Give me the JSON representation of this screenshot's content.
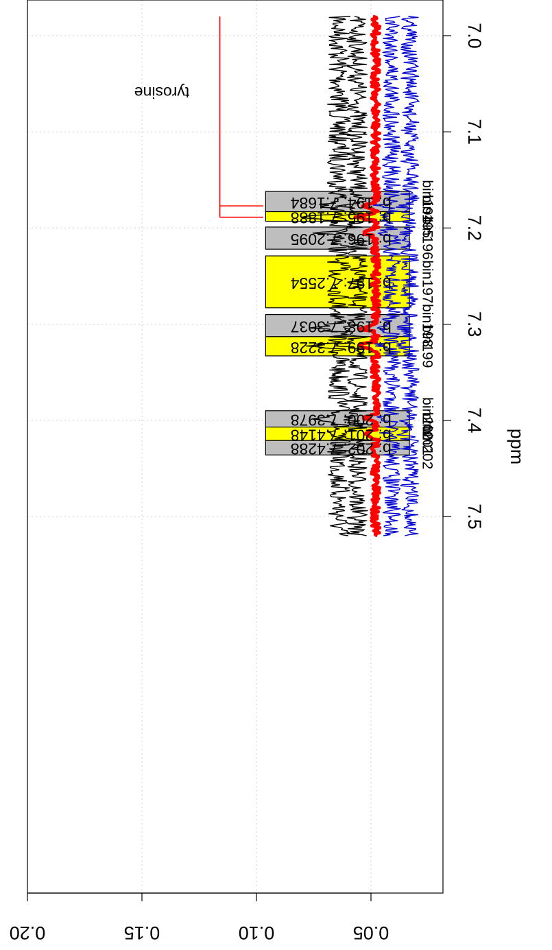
{
  "chart_data": {
    "type": "line",
    "rotation_deg": 90,
    "xlabel": "ppm",
    "ylabel": "",
    "x_axis": {
      "reversed": true,
      "lim": [
        6.98,
        7.52
      ],
      "ticks": [
        "7.0",
        "7.1",
        "7.2",
        "7.3",
        "7.4",
        "7.5"
      ]
    },
    "y_axis": {
      "lim": [
        0.02,
        0.2
      ],
      "ticks": [
        "0.05",
        "0.10",
        "0.15",
        "0.20"
      ]
    },
    "grid": true,
    "colors": {
      "black": "#000000",
      "red": "#ff0000",
      "blue": "#0000cc",
      "bin_gray": "#bebebe",
      "bin_yellow": "#ffff00",
      "grid": "#cccccc"
    },
    "series": [
      {
        "color_key": "black",
        "style": "thin",
        "baseline": 0.064,
        "noise": 0.005
      },
      {
        "color_key": "black",
        "style": "thin",
        "baseline": 0.056,
        "noise": 0.0045
      },
      {
        "color_key": "red",
        "style": "thick",
        "baseline": 0.048,
        "noise": 0.0018
      },
      {
        "color_key": "blue",
        "style": "thin",
        "baseline": 0.041,
        "noise": 0.004
      },
      {
        "color_key": "blue",
        "style": "thin",
        "baseline": 0.033,
        "noise": 0.004
      }
    ],
    "peaks": [
      {
        "ppm": 7.177,
        "height": 0.01,
        "width": 0.0025
      },
      {
        "ppm": 7.1886,
        "height": 0.012,
        "width": 0.0025
      },
      {
        "ppm": 7.205,
        "height": 0.007,
        "width": 0.003
      },
      {
        "ppm": 7.304,
        "height": 0.009,
        "width": 0.003
      },
      {
        "ppm": 7.322,
        "height": 0.012,
        "width": 0.0025
      },
      {
        "ppm": 7.398,
        "height": 0.007,
        "width": 0.003
      },
      {
        "ppm": 7.414,
        "height": 0.008,
        "width": 0.003
      }
    ],
    "bins": [
      {
        "name": "bin194",
        "label": "b: 194: 7.1684",
        "ppm_min": 7.162,
        "ppm_max": 7.183,
        "y_top": 0.096,
        "fill": "bin_gray"
      },
      {
        "name": "bin195",
        "label": "b: 195: 7.1888",
        "ppm_min": 7.183,
        "ppm_max": 7.193,
        "y_top": 0.096,
        "fill": "bin_yellow"
      },
      {
        "name": "bin196",
        "label": "b: 196: 7.2095",
        "ppm_min": 7.199,
        "ppm_max": 7.222,
        "y_top": 0.096,
        "fill": "bin_gray"
      },
      {
        "name": "bin197",
        "label": "b: 197: 7.2554",
        "ppm_min": 7.229,
        "ppm_max": 7.283,
        "y_top": 0.096,
        "fill": "bin_yellow"
      },
      {
        "name": "bin198",
        "label": "b: 198: 7.3037",
        "ppm_min": 7.29,
        "ppm_max": 7.313,
        "y_top": 0.096,
        "fill": "bin_gray"
      },
      {
        "name": "bin199",
        "label": "b: 199: 7.3228",
        "ppm_min": 7.313,
        "ppm_max": 7.333,
        "y_top": 0.096,
        "fill": "bin_yellow"
      },
      {
        "name": "bin200",
        "label": "b: 200: 7.3978",
        "ppm_min": 7.39,
        "ppm_max": 7.407,
        "y_top": 0.096,
        "fill": "bin_gray"
      },
      {
        "name": "bin201",
        "label": "b: 201: 7.4148",
        "ppm_min": 7.407,
        "ppm_max": 7.421,
        "y_top": 0.096,
        "fill": "bin_yellow"
      },
      {
        "name": "bin202",
        "label": "b: 202: 7.4288",
        "ppm_min": 7.421,
        "ppm_max": 7.436,
        "y_top": 0.096,
        "fill": "bin_gray"
      }
    ],
    "bin_name_labels": [
      "bin194",
      "bin195",
      "bin196",
      "bin197",
      "bin198",
      "bin199",
      "bin200",
      "bin201",
      "bin202"
    ],
    "annotation": {
      "text": "tyrosine",
      "color_key": "red",
      "bracket_y": 0.116,
      "trunk_ppm_min": 6.98,
      "trunk_ppm_max": 7.1888,
      "branches_ppm": [
        7.177,
        7.1888
      ],
      "branch_end_y": 0.097
    }
  }
}
